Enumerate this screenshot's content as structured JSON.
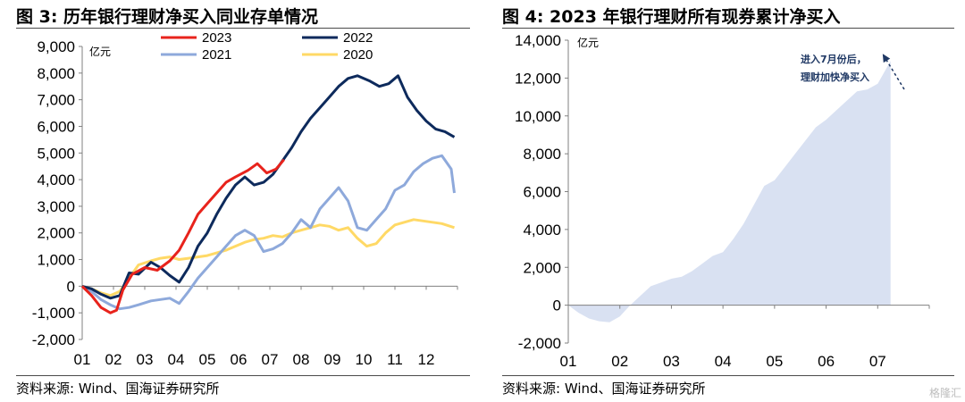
{
  "left_panel": {
    "title": "图 3:  历年银行理财净买入同业存单情况",
    "source": "资料来源:  Wind、国海证券研究所"
  },
  "right_panel": {
    "title": "图 4:  2023 年银行理财所有现券累计净买入",
    "source": "资料来源:  Wind、国海证券研究所"
  },
  "watermark": "格隆汇",
  "chart_data": [
    {
      "type": "line",
      "unit_label": "亿元",
      "ylim": [
        -2000,
        9000
      ],
      "yticks": [
        "9,000",
        "8,000",
        "7,000",
        "6,000",
        "5,000",
        "4,000",
        "3,000",
        "2,000",
        "1,000",
        "0",
        "-1,000",
        "-2,000"
      ],
      "ytick_values": [
        9000,
        8000,
        7000,
        6000,
        5000,
        4000,
        3000,
        2000,
        1000,
        0,
        -1000,
        -2000
      ],
      "xlim": [
        1,
        13
      ],
      "categories": [
        "01",
        "02",
        "03",
        "04",
        "05",
        "06",
        "07",
        "08",
        "09",
        "10",
        "11",
        "12"
      ],
      "legend_position": "top",
      "series": [
        {
          "name": "2023",
          "color": "#e8231c",
          "x": [
            1,
            1.3,
            1.6,
            1.9,
            2.1,
            2.3,
            2.6,
            3,
            3.4,
            3.8,
            4.1,
            4.4,
            4.7,
            5,
            5.3,
            5.6,
            5.9,
            6.3,
            6.6,
            6.9,
            7.2,
            7.45
          ],
          "y": [
            0,
            -350,
            -800,
            -1000,
            -900,
            -150,
            450,
            700,
            600,
            950,
            1350,
            2000,
            2700,
            3100,
            3500,
            3900,
            4100,
            4350,
            4600,
            4250,
            4400,
            4750
          ]
        },
        {
          "name": "2022",
          "color": "#0d2a5c",
          "x": [
            1,
            1.3,
            1.6,
            1.9,
            2.2,
            2.5,
            2.8,
            3.2,
            3.5,
            3.8,
            4.1,
            4.4,
            4.7,
            5,
            5.3,
            5.6,
            5.9,
            6.2,
            6.5,
            6.8,
            7.1,
            7.4,
            7.7,
            8,
            8.3,
            8.6,
            8.9,
            9.2,
            9.5,
            9.8,
            10.2,
            10.5,
            10.8,
            11.1,
            11.4,
            11.7,
            12,
            12.3,
            12.6,
            12.9
          ],
          "y": [
            0,
            -100,
            -300,
            -450,
            -350,
            500,
            450,
            900,
            700,
            400,
            150,
            700,
            1500,
            2000,
            2700,
            3300,
            3800,
            4100,
            3800,
            3900,
            4200,
            4700,
            5200,
            5800,
            6300,
            6700,
            7100,
            7500,
            7800,
            7900,
            7700,
            7500,
            7600,
            7900,
            7100,
            6600,
            6200,
            5900,
            5800,
            5600
          ]
        },
        {
          "name": "2021",
          "color": "#8ea9db",
          "x": [
            1,
            1.3,
            1.6,
            1.9,
            2.2,
            2.5,
            2.8,
            3.2,
            3.5,
            3.8,
            4.1,
            4.4,
            4.7,
            5,
            5.3,
            5.6,
            5.9,
            6.2,
            6.5,
            6.8,
            7.1,
            7.4,
            7.7,
            8,
            8.3,
            8.6,
            8.9,
            9.2,
            9.5,
            9.8,
            10.1,
            10.4,
            10.7,
            11,
            11.3,
            11.6,
            11.9,
            12.2,
            12.5,
            12.8,
            12.9
          ],
          "y": [
            0,
            -200,
            -500,
            -700,
            -850,
            -800,
            -700,
            -550,
            -500,
            -450,
            -650,
            -200,
            300,
            700,
            1100,
            1500,
            1900,
            2100,
            1900,
            1300,
            1400,
            1600,
            2000,
            2500,
            2200,
            2900,
            3300,
            3700,
            3200,
            2200,
            2100,
            2500,
            2900,
            3600,
            3800,
            4300,
            4600,
            4800,
            4900,
            4400,
            3500
          ]
        },
        {
          "name": "2020",
          "color": "#ffd966",
          "x": [
            1,
            1.3,
            1.6,
            1.9,
            2.2,
            2.5,
            2.8,
            3.2,
            3.5,
            3.8,
            4.1,
            4.4,
            4.7,
            5,
            5.3,
            5.6,
            5.9,
            6.2,
            6.5,
            6.8,
            7.1,
            7.4,
            7.7,
            8,
            8.3,
            8.6,
            8.9,
            9.2,
            9.5,
            9.8,
            10.1,
            10.4,
            10.7,
            11,
            11.3,
            11.6,
            11.9,
            12.2,
            12.5,
            12.9
          ],
          "y": [
            0,
            -100,
            -250,
            -350,
            -200,
            300,
            800,
            950,
            1050,
            1100,
            1000,
            1050,
            1100,
            1150,
            1250,
            1350,
            1500,
            1650,
            1750,
            1800,
            1900,
            1850,
            2000,
            2100,
            2200,
            2300,
            2250,
            2100,
            2200,
            1800,
            1500,
            1600,
            2000,
            2300,
            2400,
            2500,
            2450,
            2400,
            2350,
            2200
          ]
        }
      ]
    },
    {
      "type": "area",
      "unit_label": "亿元",
      "ylim": [
        -2000,
        14000
      ],
      "yticks": [
        "14,000",
        "12,000",
        "10,000",
        "8,000",
        "6,000",
        "4,000",
        "2,000",
        "0",
        "-2,000"
      ],
      "ytick_values": [
        14000,
        12000,
        10000,
        8000,
        6000,
        4000,
        2000,
        0,
        -2000
      ],
      "xlim": [
        1,
        8
      ],
      "categories": [
        "01",
        "02",
        "03",
        "04",
        "05",
        "06",
        "07"
      ],
      "fill_color": "#d9e1f2",
      "annotation": {
        "lines": [
          "进入7月份后，",
          "理财加快净买入"
        ],
        "x": 6.8,
        "y": 12000,
        "arrow_to": [
          7.2,
          13000
        ]
      },
      "x": [
        1,
        1.2,
        1.4,
        1.6,
        1.8,
        2,
        2.2,
        2.4,
        2.6,
        2.8,
        3,
        3.2,
        3.4,
        3.6,
        3.8,
        4,
        4.2,
        4.4,
        4.6,
        4.8,
        5,
        5.2,
        5.4,
        5.6,
        5.8,
        6,
        6.2,
        6.4,
        6.6,
        6.8,
        7,
        7.25
      ],
      "y": [
        0,
        -400,
        -700,
        -850,
        -900,
        -600,
        0,
        500,
        1000,
        1200,
        1400,
        1500,
        1800,
        2200,
        2600,
        2800,
        3500,
        4300,
        5300,
        6300,
        6600,
        7300,
        8000,
        8700,
        9400,
        9800,
        10300,
        10800,
        11300,
        11400,
        11700,
        12900
      ]
    }
  ]
}
